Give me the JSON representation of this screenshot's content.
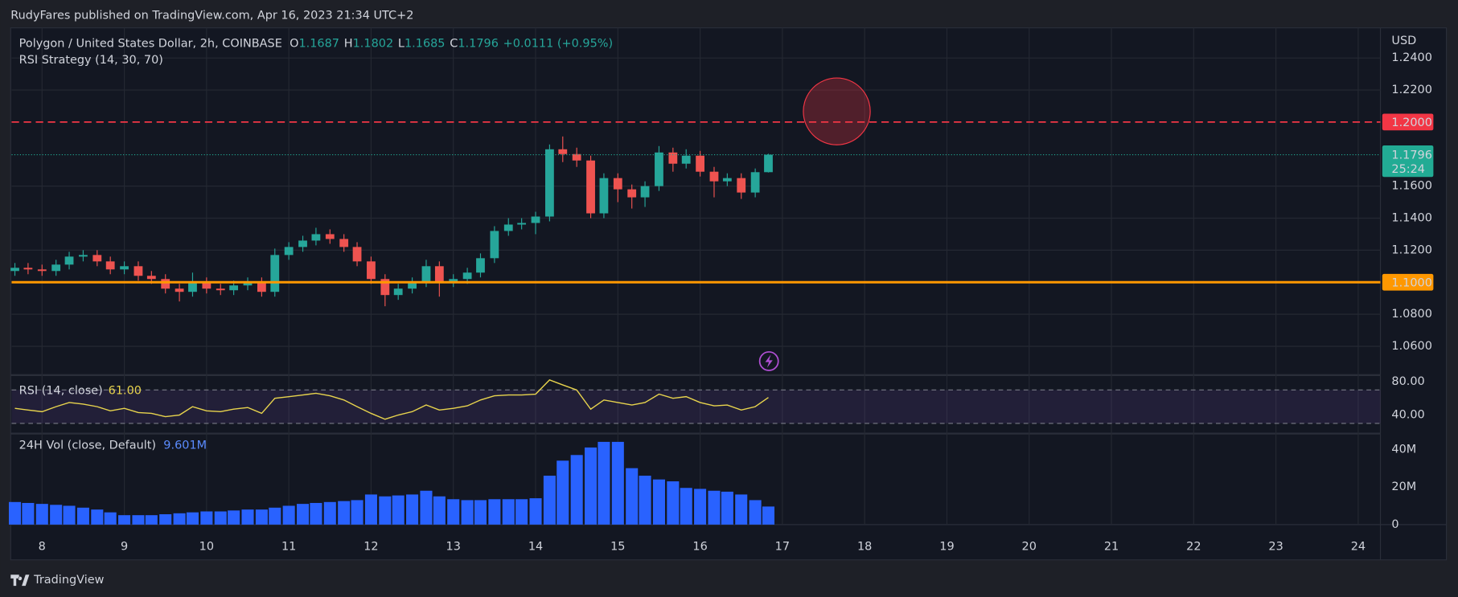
{
  "header": {
    "published": "RudyFares published on TradingView.com, Apr 16, 2023 21:34 UTC+2",
    "brand": "TradingView"
  },
  "chart_data": [
    {
      "type": "candlestick",
      "title": "Polygon / United States Dollar, 2h, COINBASE",
      "legend": [
        {
          "label": "O",
          "value": "1.1687"
        },
        {
          "label": "H",
          "value": "1.1802"
        },
        {
          "label": "L",
          "value": "1.1685"
        },
        {
          "label": "C",
          "value": "1.1796"
        }
      ],
      "change": "+0.0111 (+0.95%)",
      "indicator": "RSI Strategy (14, 30, 70)",
      "currency": "USD",
      "x": [
        7.67,
        7.83,
        8,
        8.17,
        8.33,
        8.5,
        8.67,
        8.83,
        9,
        9.17,
        9.33,
        9.5,
        9.67,
        9.83,
        10,
        10.17,
        10.33,
        10.5,
        10.67,
        10.83,
        11,
        11.17,
        11.33,
        11.5,
        11.67,
        11.83,
        12,
        12.17,
        12.33,
        12.5,
        12.67,
        12.83,
        13,
        13.17,
        13.33,
        13.5,
        13.67,
        13.83,
        14,
        14.17,
        14.33,
        14.5,
        14.67,
        14.83,
        15,
        15.17,
        15.33,
        15.5,
        15.67,
        15.83,
        16,
        16.17,
        16.33,
        16.5,
        16.67,
        16.83
      ],
      "open": [
        1.107,
        1.109,
        1.108,
        1.107,
        1.111,
        1.116,
        1.117,
        1.113,
        1.108,
        1.11,
        1.104,
        1.102,
        1.096,
        1.094,
        1.1,
        1.096,
        1.095,
        1.098,
        1.1,
        1.094,
        1.117,
        1.122,
        1.126,
        1.13,
        1.127,
        1.122,
        1.113,
        1.102,
        1.092,
        1.096,
        1.1,
        1.11,
        1.1,
        1.102,
        1.106,
        1.115,
        1.132,
        1.136,
        1.137,
        1.141,
        1.183,
        1.18,
        1.176,
        1.143,
        1.165,
        1.158,
        1.153,
        1.16,
        1.181,
        1.174,
        1.179,
        1.169,
        1.163,
        1.165,
        1.156,
        1.1687
      ],
      "high": [
        1.112,
        1.112,
        1.111,
        1.114,
        1.119,
        1.12,
        1.12,
        1.116,
        1.113,
        1.113,
        1.107,
        1.105,
        1.099,
        1.106,
        1.103,
        1.099,
        1.101,
        1.103,
        1.103,
        1.121,
        1.125,
        1.129,
        1.134,
        1.133,
        1.13,
        1.125,
        1.116,
        1.105,
        1.099,
        1.103,
        1.114,
        1.113,
        1.105,
        1.109,
        1.118,
        1.135,
        1.14,
        1.14,
        1.144,
        1.186,
        1.191,
        1.184,
        1.179,
        1.168,
        1.168,
        1.161,
        1.163,
        1.185,
        1.184,
        1.183,
        1.182,
        1.172,
        1.168,
        1.168,
        1.171,
        1.1802
      ],
      "low": [
        1.104,
        1.105,
        1.104,
        1.104,
        1.108,
        1.113,
        1.11,
        1.105,
        1.105,
        1.101,
        1.099,
        1.093,
        1.088,
        1.091,
        1.093,
        1.092,
        1.092,
        1.095,
        1.091,
        1.091,
        1.114,
        1.119,
        1.123,
        1.124,
        1.119,
        1.11,
        1.099,
        1.085,
        1.089,
        1.093,
        1.097,
        1.091,
        1.097,
        1.099,
        1.103,
        1.112,
        1.129,
        1.133,
        1.13,
        1.138,
        1.175,
        1.172,
        1.14,
        1.14,
        1.15,
        1.146,
        1.147,
        1.157,
        1.169,
        1.171,
        1.166,
        1.153,
        1.16,
        1.152,
        1.153,
        1.1685
      ],
      "close": [
        1.109,
        1.108,
        1.107,
        1.111,
        1.116,
        1.117,
        1.113,
        1.108,
        1.11,
        1.104,
        1.102,
        1.096,
        1.094,
        1.1,
        1.096,
        1.095,
        1.098,
        1.1,
        1.094,
        1.117,
        1.122,
        1.126,
        1.13,
        1.127,
        1.122,
        1.113,
        1.102,
        1.092,
        1.096,
        1.1,
        1.11,
        1.1,
        1.102,
        1.106,
        1.115,
        1.132,
        1.136,
        1.137,
        1.141,
        1.183,
        1.18,
        1.176,
        1.143,
        1.165,
        1.158,
        1.153,
        1.16,
        1.181,
        1.174,
        1.179,
        1.169,
        1.163,
        1.165,
        1.156,
        1.1687,
        1.1796
      ],
      "up_color": "#26a69a",
      "down_color": "#ef5350",
      "xlim": [
        7.63,
        24.27
      ],
      "xticks": [
        8,
        9,
        10,
        11,
        12,
        13,
        14,
        15,
        16,
        17,
        18,
        19,
        20,
        21,
        22,
        23,
        24
      ],
      "ylim": [
        1.0426,
        1.2588
      ],
      "yticks": [
        {
          "value": 1.06,
          "label": "1.0600"
        },
        {
          "value": 1.08,
          "label": "1.0800"
        },
        {
          "value": 1.12,
          "label": "1.1200"
        },
        {
          "value": 1.14,
          "label": "1.1400"
        },
        {
          "value": 1.16,
          "label": "1.1600"
        },
        {
          "value": 1.22,
          "label": "1.2200"
        },
        {
          "value": 1.24,
          "label": "1.2400"
        }
      ],
      "grid": true,
      "lines": [
        {
          "value": 1.2,
          "label": "1.2000",
          "color": "#f23645",
          "style": "dashed"
        },
        {
          "value": 1.1,
          "label": "1.1000",
          "color": "#ff9800",
          "style": "solid"
        }
      ],
      "last": {
        "value": 1.1796,
        "label": "1.1796",
        "countdown": "25:24",
        "color": "#22ab94"
      }
    },
    {
      "type": "line",
      "title": "RSI (14, close)",
      "last_label": "61.00",
      "color": "#e8d44d",
      "values": [
        48,
        46,
        44,
        50,
        55,
        53,
        50,
        45,
        48,
        43,
        42,
        38,
        40,
        50,
        45,
        44,
        47,
        49,
        42,
        60,
        62,
        64,
        66,
        63,
        58,
        50,
        42,
        35,
        40,
        44,
        52,
        46,
        48,
        51,
        58,
        63,
        64,
        64,
        65,
        82,
        76,
        70,
        47,
        58,
        55,
        52,
        55,
        65,
        60,
        62,
        55,
        51,
        52,
        46,
        50,
        61
      ],
      "band": [
        30,
        70
      ],
      "ylim": [
        18.9,
        86.7
      ],
      "yticks": [
        {
          "value": 80,
          "label": "80.00"
        },
        {
          "value": 40,
          "label": "40.00"
        }
      ]
    },
    {
      "type": "bar",
      "title": "24H Vol (close, Default)",
      "last_label": "9.601M",
      "color": "#2962ff",
      "values": [
        12000000,
        11500000,
        11000000,
        10500000,
        10000000,
        9000000,
        8000000,
        6500000,
        5000000,
        5000000,
        5000000,
        5500000,
        6000000,
        6500000,
        7000000,
        7000000,
        7500000,
        8000000,
        8000000,
        9000000,
        10000000,
        11000000,
        11500000,
        12000000,
        12500000,
        13000000,
        16000000,
        15000000,
        15500000,
        16000000,
        18000000,
        15000000,
        13500000,
        13000000,
        13000000,
        13500000,
        13500000,
        13500000,
        14000000,
        26000000,
        34000000,
        37000000,
        41000000,
        44000000,
        44000000,
        30000000,
        26000000,
        24000000,
        23000000,
        19500000,
        19000000,
        18000000,
        17500000,
        16000000,
        13000000,
        9601000
      ],
      "ylim": [
        0,
        47900000
      ],
      "yticks": [
        0,
        {
          "value": 20000000,
          "label": "20M"
        },
        {
          "value": 40000000,
          "label": "40M"
        }
      ]
    }
  ]
}
